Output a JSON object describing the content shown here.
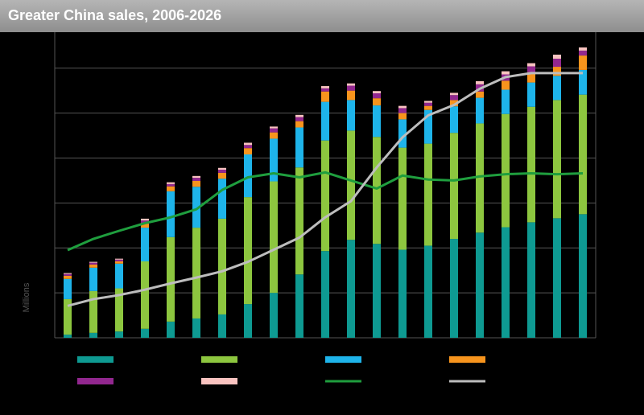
{
  "chart_data": {
    "type": "bar",
    "stacked": true,
    "title": "Greater China sales, 2006-2026",
    "y_label": "Millions",
    "categories": [
      null,
      null,
      null,
      null,
      null,
      null,
      null,
      null,
      null,
      null,
      null,
      null,
      null,
      null,
      null,
      null,
      null,
      null,
      null,
      null,
      null
    ],
    "ylim": [
      0,
      68
    ],
    "yticks": [
      0,
      10,
      20,
      30,
      40,
      50,
      60
    ],
    "grid": true,
    "series": [
      {
        "type": "bar",
        "color": "#0e9a92",
        "values": [
          0.7,
          1.1,
          1.4,
          2.0,
          3.6,
          4.3,
          5.2,
          7.5,
          10.0,
          14.1,
          19.3,
          21.8,
          20.9,
          19.6,
          20.5,
          22.0,
          23.4,
          24.6,
          25.7,
          26.6,
          27.5
        ]
      },
      {
        "type": "bar",
        "color": "#8dc63f",
        "values": [
          7.9,
          9.3,
          9.6,
          15.0,
          18.8,
          20.2,
          21.3,
          23.8,
          24.8,
          23.8,
          24.6,
          24.3,
          23.8,
          22.7,
          22.7,
          23.6,
          24.3,
          25.2,
          25.7,
          26.3,
          26.6
        ]
      },
      {
        "type": "bar",
        "color": "#1eb4ea",
        "values": [
          4.5,
          5.2,
          5.5,
          7.5,
          10.2,
          9.1,
          8.9,
          9.5,
          9.5,
          8.9,
          8.6,
          6.8,
          7.0,
          6.3,
          7.5,
          5.9,
          5.7,
          5.4,
          5.4,
          5.4,
          5.5
        ]
      },
      {
        "type": "bar",
        "color": "#f7941d",
        "values": [
          0.7,
          0.7,
          0.5,
          1.1,
          1.1,
          1.3,
          1.3,
          1.4,
          1.4,
          1.4,
          2.3,
          2.1,
          1.6,
          1.4,
          0.9,
          1.4,
          1.4,
          2.0,
          2.3,
          2.0,
          3.2
        ]
      },
      {
        "type": "bar",
        "color": "#92278f",
        "values": [
          0.4,
          0.4,
          0.4,
          0.5,
          0.5,
          0.7,
          0.7,
          0.7,
          0.9,
          0.9,
          0.7,
          1.1,
          1.1,
          1.1,
          0.7,
          1.1,
          1.6,
          1.4,
          1.3,
          1.8,
          1.1
        ]
      },
      {
        "type": "bar",
        "color": "#f9c3c0",
        "values": [
          0.2,
          0.2,
          0.2,
          0.4,
          0.4,
          0.4,
          0.4,
          0.5,
          0.4,
          0.5,
          0.5,
          0.5,
          0.5,
          0.5,
          0.4,
          0.5,
          0.7,
          0.7,
          0.7,
          0.9,
          0.7
        ]
      },
      {
        "type": "line",
        "color": "#1f9e3e",
        "values": [
          19.5,
          22.0,
          23.8,
          25.5,
          26.8,
          28.6,
          32.9,
          35.7,
          36.6,
          35.7,
          36.8,
          35.0,
          33.2,
          36.1,
          35.2,
          35.0,
          35.9,
          36.4,
          36.6,
          36.4,
          36.6
        ]
      },
      {
        "type": "line",
        "color": "#bdbdbd",
        "values": [
          7.1,
          8.6,
          9.5,
          10.7,
          12.1,
          13.4,
          14.8,
          16.9,
          19.6,
          22.3,
          26.8,
          30.4,
          37.9,
          44.6,
          49.5,
          51.8,
          55.4,
          58.0,
          58.9,
          58.9,
          58.9
        ]
      }
    ]
  }
}
